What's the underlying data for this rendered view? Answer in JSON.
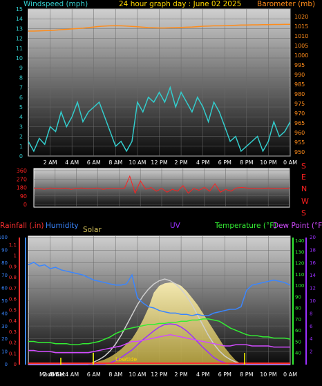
{
  "colors": {
    "windspeed": "#33cccc",
    "barometer": "#ff8c1a",
    "wind_dir": "#ff2020",
    "rainfall": "#ff3030",
    "humidity": "#3a86ff",
    "solar": "#d4c15a",
    "uv": "#9b30ff",
    "temperature": "#33ee33",
    "dewpoint": "#d24bff",
    "solar_fill": "#f3e6a0",
    "solar_max": "#cfcfcf",
    "dew_marker": "#ffff00"
  },
  "chart_data": [
    {
      "type": "line",
      "title": "24 hour graph day : June 02 2025",
      "ylabel": "Windspeed (mph)",
      "ylabel_right": "Barometer (mb)",
      "ylim": [
        0,
        15
      ],
      "ylim_right": [
        950,
        1020
      ],
      "yticks": [
        "0",
        "1",
        "2",
        "3",
        "4",
        "5",
        "6",
        "7",
        "8",
        "9",
        "10",
        "11",
        "12",
        "13",
        "14",
        "15"
      ],
      "yticks_right": [
        "950",
        "955",
        "960",
        "965",
        "970",
        "975",
        "980",
        "985",
        "990",
        "995",
        "1000",
        "1005",
        "1010",
        "1015",
        "1020"
      ],
      "x": [
        0,
        0.5,
        1,
        1.5,
        2,
        2.5,
        3,
        3.5,
        4,
        4.5,
        5,
        5.5,
        6,
        6.5,
        7,
        7.5,
        8,
        8.5,
        9,
        9.5,
        10,
        10.5,
        11,
        11.5,
        12,
        12.5,
        13,
        13.5,
        14,
        14.5,
        15,
        15.5,
        16,
        16.5,
        17,
        17.5,
        18,
        18.5,
        19,
        19.5,
        20,
        20.5,
        21,
        21.5,
        22,
        22.5,
        23,
        23.5,
        24
      ],
      "xticks": [
        "2 AM",
        "4 AM",
        "6 AM",
        "8 AM",
        "10 AM",
        "12 PM",
        "2 PM",
        "4 PM",
        "6 PM",
        "8 PM",
        "10 PM",
        "0 AM"
      ],
      "series": [
        {
          "name": "Windspeed (mph)",
          "axis": "left",
          "values": [
            1.5,
            0.5,
            1.8,
            1.2,
            3.0,
            2.5,
            4.5,
            3.0,
            4.0,
            5.5,
            3.5,
            4.5,
            5.0,
            5.5,
            4.0,
            2.5,
            1.0,
            1.5,
            0.5,
            1.5,
            5.5,
            4.5,
            6.0,
            5.5,
            6.5,
            5.5,
            7.0,
            5.0,
            6.5,
            5.5,
            4.5,
            6.0,
            5.0,
            3.5,
            5.5,
            4.5,
            3.0,
            1.5,
            2.0,
            0.5,
            1.0,
            1.5,
            2.0,
            0.5,
            1.5,
            3.5,
            2.0,
            2.5,
            3.5
          ]
        },
        {
          "name": "Barometer (mb)",
          "axis": "right",
          "values": [
            1012.5,
            1012.5,
            1012.6,
            1012.7,
            1012.8,
            1013.0,
            1013.2,
            1013.4,
            1013.6,
            1013.8,
            1014.0,
            1014.3,
            1014.6,
            1014.9,
            1015.1,
            1015.2,
            1015.3,
            1015.2,
            1015.1,
            1014.9,
            1014.7,
            1014.5,
            1014.3,
            1014.2,
            1014.1,
            1014.1,
            1014.2,
            1014.3,
            1014.4,
            1014.5,
            1014.6,
            1014.8,
            1015.0,
            1015.1,
            1015.2,
            1015.2,
            1015.3,
            1015.4,
            1015.5,
            1015.6,
            1015.6,
            1015.7,
            1015.7,
            1015.8,
            1015.8,
            1015.9,
            1015.9,
            1016.0,
            1016.0
          ]
        }
      ]
    },
    {
      "type": "line",
      "ylabel": "",
      "ylim": [
        0,
        360
      ],
      "yticks": [
        "0",
        "90",
        "180",
        "270",
        "360"
      ],
      "compass": [
        "S",
        "E",
        "N",
        "W",
        "S"
      ],
      "x": [
        0,
        0.5,
        1,
        1.5,
        2,
        2.5,
        3,
        3.5,
        4,
        4.5,
        5,
        5.5,
        6,
        6.5,
        7,
        7.5,
        8,
        8.5,
        9,
        9.5,
        10,
        10.5,
        11,
        11.5,
        12,
        12.5,
        13,
        13.5,
        14,
        14.5,
        15,
        15.5,
        16,
        16.5,
        17,
        17.5,
        18,
        18.5,
        19,
        19.5,
        20,
        20.5,
        21,
        21.5,
        22,
        22.5,
        23,
        23.5,
        24
      ],
      "series": [
        {
          "name": "Wind direction",
          "values": [
            165,
            170,
            160,
            175,
            170,
            165,
            175,
            160,
            170,
            175,
            165,
            170,
            175,
            160,
            170,
            165,
            165,
            170,
            300,
            120,
            250,
            160,
            180,
            140,
            170,
            130,
            160,
            140,
            200,
            120,
            170,
            150,
            180,
            140,
            220,
            130,
            160,
            140,
            175,
            180,
            175,
            170,
            165,
            170,
            175,
            170,
            165,
            170,
            175
          ]
        }
      ]
    },
    {
      "type": "area",
      "labels": {
        "rainfall": "Rainfall (.in)",
        "humidity": "Humidity",
        "solar": "Solar",
        "uv": "UV",
        "temperature": "Temperature (°F)",
        "dewpoint": "Dew Point (°F)",
        "moon": "Moon Set",
        "moon_time": "5 AM",
        "lowtide": "Lowtide"
      },
      "ylim_left": [
        0,
        1
      ],
      "yticks_left": [
        "0",
        "0.1",
        "0.2",
        "0.3",
        "0.4",
        "0.5",
        "0.6",
        "0.7",
        "0.8",
        "0.9",
        "1",
        "1.1"
      ],
      "ylim_humidity": [
        0,
        100
      ],
      "yticks_humidity": [
        "0",
        "10",
        "20",
        "30",
        "40",
        "50",
        "60",
        "70",
        "80",
        "90",
        "100"
      ],
      "ylim_temp": [
        30,
        140
      ],
      "yticks_temp": [
        "40",
        "50",
        "60",
        "70",
        "80",
        "90",
        "100",
        "110",
        "120",
        "130",
        "140"
      ],
      "ylim_uv": [
        0,
        20
      ],
      "yticks_uv": [
        "2",
        "4",
        "6",
        "8",
        "10",
        "12",
        "14",
        "16",
        "18",
        "20"
      ],
      "x": [
        0,
        0.5,
        1,
        1.5,
        2,
        2.5,
        3,
        3.5,
        4,
        4.5,
        5,
        5.5,
        6,
        6.5,
        7,
        7.5,
        8,
        8.5,
        9,
        9.5,
        10,
        10.5,
        11,
        11.5,
        12,
        12.5,
        13,
        13.5,
        14,
        14.5,
        15,
        15.5,
        16,
        16.5,
        17,
        17.5,
        18,
        18.5,
        19,
        19.5,
        20,
        20.5,
        21,
        21.5,
        22,
        22.5,
        23,
        23.5,
        24
      ],
      "xticks": [
        "2 AM",
        "4 AM",
        "6 AM",
        "8 AM",
        "10 AM",
        "12 PM",
        "2 PM",
        "4 PM",
        "6 PM",
        "8 PM",
        "10 PM",
        "0 AM"
      ],
      "series": [
        {
          "name": "Humidity",
          "axis": "humidity",
          "values": [
            78,
            80,
            77,
            78,
            75,
            76,
            74,
            73,
            72,
            71,
            70,
            68,
            66,
            65,
            64,
            63,
            62,
            62,
            63,
            70,
            52,
            48,
            45,
            44,
            42,
            41,
            40,
            40,
            39,
            39,
            38,
            39,
            38,
            38,
            40,
            41,
            42,
            43,
            43,
            45,
            58,
            62,
            63,
            64,
            65,
            66,
            65,
            64,
            62
          ]
        },
        {
          "name": "Temperature (°F)",
          "axis": "temp",
          "values": [
            50,
            50,
            49,
            49,
            49,
            48,
            48,
            48,
            47,
            47,
            48,
            48,
            49,
            50,
            52,
            54,
            57,
            59,
            61,
            62,
            63,
            64,
            65,
            65,
            66,
            66,
            67,
            67,
            68,
            68,
            69,
            69,
            70,
            70,
            69,
            68,
            65,
            62,
            60,
            58,
            56,
            55,
            55,
            54,
            54,
            53,
            53,
            53,
            52
          ]
        },
        {
          "name": "Dew Point (°F)",
          "axis": "temp",
          "values": [
            42,
            42,
            41,
            41,
            41,
            40,
            40,
            40,
            40,
            40,
            40,
            40,
            41,
            42,
            43,
            44,
            45,
            46,
            48,
            50,
            50,
            51,
            52,
            53,
            54,
            55,
            56,
            55,
            54,
            53,
            52,
            51,
            50,
            49,
            48,
            47,
            46,
            46,
            47,
            47,
            47,
            46,
            46,
            46,
            46,
            45,
            45,
            45,
            45
          ]
        },
        {
          "name": "Solar",
          "axis": "solar",
          "values": [
            0,
            0,
            0,
            0,
            0,
            0,
            0,
            0,
            0,
            0,
            0,
            0,
            2,
            4,
            6,
            9,
            13,
            18,
            24,
            30,
            40,
            52,
            66,
            84,
            92,
            95,
            96,
            95,
            92,
            86,
            78,
            70,
            60,
            50,
            40,
            30,
            20,
            12,
            5,
            1,
            0,
            0,
            0,
            0,
            0,
            0,
            0,
            0,
            0
          ]
        },
        {
          "name": "Solar max",
          "axis": "solar",
          "values": [
            0,
            0,
            0,
            0,
            0,
            0,
            0,
            0,
            0,
            0,
            0,
            0,
            3,
            6,
            10,
            16,
            24,
            34,
            46,
            58,
            70,
            80,
            88,
            94,
            98,
            100,
            98,
            94,
            88,
            80,
            70,
            58,
            46,
            34,
            24,
            16,
            10,
            6,
            3,
            1,
            0,
            0,
            0,
            0,
            0,
            0,
            0,
            0,
            0
          ]
        },
        {
          "name": "UV",
          "axis": "uv",
          "values": [
            0,
            0,
            0,
            0,
            0,
            0,
            0,
            0,
            0,
            0,
            0,
            0,
            0,
            0,
            0,
            0.2,
            0.5,
            1,
            1.6,
            2.2,
            3,
            3.8,
            4.5,
            5.2,
            5.8,
            6.2,
            6.3,
            6.2,
            5.8,
            5.2,
            4.4,
            3.5,
            2.6,
            1.8,
            1.0,
            0.5,
            0.2,
            0,
            0,
            0,
            0,
            0,
            0,
            0,
            0,
            0,
            0,
            0,
            0
          ]
        },
        {
          "name": "Rainfall (.in)",
          "axis": "left",
          "values": [
            0,
            0,
            0,
            0,
            0,
            0,
            0,
            0,
            0,
            0,
            0,
            0,
            0,
            0,
            0,
            0,
            0,
            0,
            0,
            0,
            0,
            0,
            0,
            0,
            0,
            0,
            0,
            0,
            0,
            0,
            0,
            0,
            0,
            0,
            0,
            0,
            0,
            0,
            0,
            0,
            0,
            0,
            0,
            0,
            0,
            0,
            0,
            0,
            0
          ]
        }
      ]
    }
  ]
}
